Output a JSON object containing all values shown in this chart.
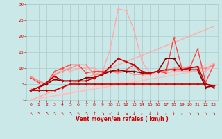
{
  "bg_color": "#cbe8e8",
  "grid_color": "#aacccc",
  "x_label": "Vent moyen/en rafales ( km/h )",
  "x_range": [
    -0.5,
    23.5
  ],
  "y_range": [
    0,
    30
  ],
  "y_ticks": [
    0,
    5,
    10,
    15,
    20,
    25,
    30
  ],
  "x_ticks": [
    0,
    1,
    2,
    3,
    4,
    5,
    6,
    7,
    8,
    9,
    10,
    11,
    12,
    13,
    14,
    15,
    16,
    17,
    18,
    19,
    20,
    21,
    22,
    23
  ],
  "lines": [
    {
      "comment": "flat dark red line near y=3-5",
      "x": [
        0,
        1,
        2,
        3,
        4,
        5,
        6,
        7,
        8,
        9,
        10,
        11,
        12,
        13,
        14,
        15,
        16,
        17,
        18,
        19,
        20,
        21,
        22,
        23
      ],
      "y": [
        3,
        3,
        3,
        3,
        4,
        5,
        5,
        5,
        5,
        5,
        5,
        5,
        5,
        5,
        5,
        5,
        5,
        5,
        5,
        5,
        5,
        5,
        5,
        4
      ],
      "color": "#cc0000",
      "lw": 1.2,
      "marker": "D",
      "ms": 2.0,
      "zorder": 5
    },
    {
      "comment": "dark red wavy line with peaks at 17-18",
      "x": [
        0,
        1,
        2,
        3,
        4,
        5,
        6,
        7,
        8,
        9,
        10,
        11,
        12,
        13,
        14,
        15,
        16,
        17,
        18,
        19,
        20,
        21,
        22,
        23
      ],
      "y": [
        3,
        4,
        5,
        6.5,
        6,
        6,
        6,
        7,
        7,
        8,
        9,
        9.5,
        9,
        9,
        8.5,
        8.5,
        9,
        13,
        13,
        9.5,
        9.5,
        9.5,
        4,
        4.5
      ],
      "color": "#880000",
      "lw": 1.2,
      "marker": "D",
      "ms": 2.0,
      "zorder": 5
    },
    {
      "comment": "medium red line rising to ~16 at x=11",
      "x": [
        0,
        1,
        2,
        3,
        4,
        5,
        6,
        7,
        8,
        9,
        10,
        11,
        12,
        13,
        14,
        15,
        16,
        17,
        18,
        19,
        20,
        21,
        22,
        23
      ],
      "y": [
        3,
        4,
        5.5,
        7.5,
        6,
        6,
        6,
        6,
        7,
        8,
        10.5,
        13,
        12,
        11,
        9,
        8.5,
        9,
        9.5,
        9.5,
        9.5,
        10,
        10.5,
        5,
        4.5
      ],
      "color": "#cc0000",
      "lw": 1.2,
      "marker": "D",
      "ms": 2.0,
      "zorder": 5
    },
    {
      "comment": "bright red line with spike at 18-19",
      "x": [
        0,
        1,
        2,
        3,
        4,
        5,
        6,
        7,
        8,
        9,
        10,
        11,
        12,
        13,
        14,
        15,
        16,
        17,
        18,
        19,
        20,
        21,
        22,
        23
      ],
      "y": [
        7,
        5.5,
        5,
        9,
        10,
        11,
        11,
        8.5,
        9,
        9,
        9,
        9,
        9.5,
        11,
        8,
        8.5,
        9,
        8.5,
        19.5,
        10,
        10,
        16,
        5.5,
        11
      ],
      "color": "#ff4444",
      "lw": 1.0,
      "marker": "D",
      "ms": 1.8,
      "zorder": 4
    },
    {
      "comment": "pink line with big spike at x=11-12 ~28-29",
      "x": [
        0,
        1,
        2,
        3,
        4,
        5,
        6,
        7,
        8,
        9,
        10,
        11,
        12,
        13,
        14,
        15,
        16,
        17,
        18,
        19,
        20,
        21,
        22,
        23
      ],
      "y": [
        3.5,
        4,
        5,
        7.5,
        10,
        9,
        10,
        10,
        10,
        8.5,
        16,
        28.5,
        28,
        22,
        12,
        8.5,
        9,
        8.5,
        9,
        9,
        9,
        9,
        9,
        11.5
      ],
      "color": "#ffaaaa",
      "lw": 1.0,
      "marker": "D",
      "ms": 1.8,
      "zorder": 3
    },
    {
      "comment": "light pink line medium wavy",
      "x": [
        0,
        1,
        2,
        3,
        4,
        5,
        6,
        7,
        8,
        9,
        10,
        11,
        12,
        13,
        14,
        15,
        16,
        17,
        18,
        19,
        20,
        21,
        22,
        23
      ],
      "y": [
        7.5,
        6,
        5,
        8,
        9,
        10,
        11,
        11,
        8,
        8,
        9,
        8.5,
        9,
        8,
        8,
        8,
        9,
        9,
        10,
        10,
        10.5,
        10,
        10,
        11
      ],
      "color": "#ff8888",
      "lw": 1.0,
      "marker": "D",
      "ms": 1.8,
      "zorder": 4
    },
    {
      "comment": "linear line slope 1 (y=x) - pink",
      "x": [
        0,
        23
      ],
      "y": [
        0,
        23
      ],
      "color": "#ffaaaa",
      "lw": 1.0,
      "marker": null,
      "ms": 0,
      "zorder": 2
    },
    {
      "comment": "linear line slope 0.5 - light pink",
      "x": [
        0,
        23
      ],
      "y": [
        0,
        11.5
      ],
      "color": "#ffcccc",
      "lw": 1.0,
      "marker": null,
      "ms": 0,
      "zorder": 2
    },
    {
      "comment": "linear line slope ~0.43 - medium pink",
      "x": [
        0,
        23
      ],
      "y": [
        0,
        10
      ],
      "color": "#ffbbbb",
      "lw": 1.0,
      "marker": null,
      "ms": 0,
      "zorder": 2
    }
  ],
  "arrows": [
    "↖",
    "↖",
    "↖",
    "↖",
    "↖",
    "↖",
    "↖",
    "↖",
    "↑",
    "↘",
    "↙",
    "↓",
    "↘",
    "↓",
    "↓",
    "↓",
    "↓",
    "↓",
    "↓",
    "↓",
    "↘",
    "↘",
    "↘",
    "↘"
  ],
  "font_color": "#cc0000",
  "label_fontsize": 5.5,
  "tick_fontsize": 4.5
}
